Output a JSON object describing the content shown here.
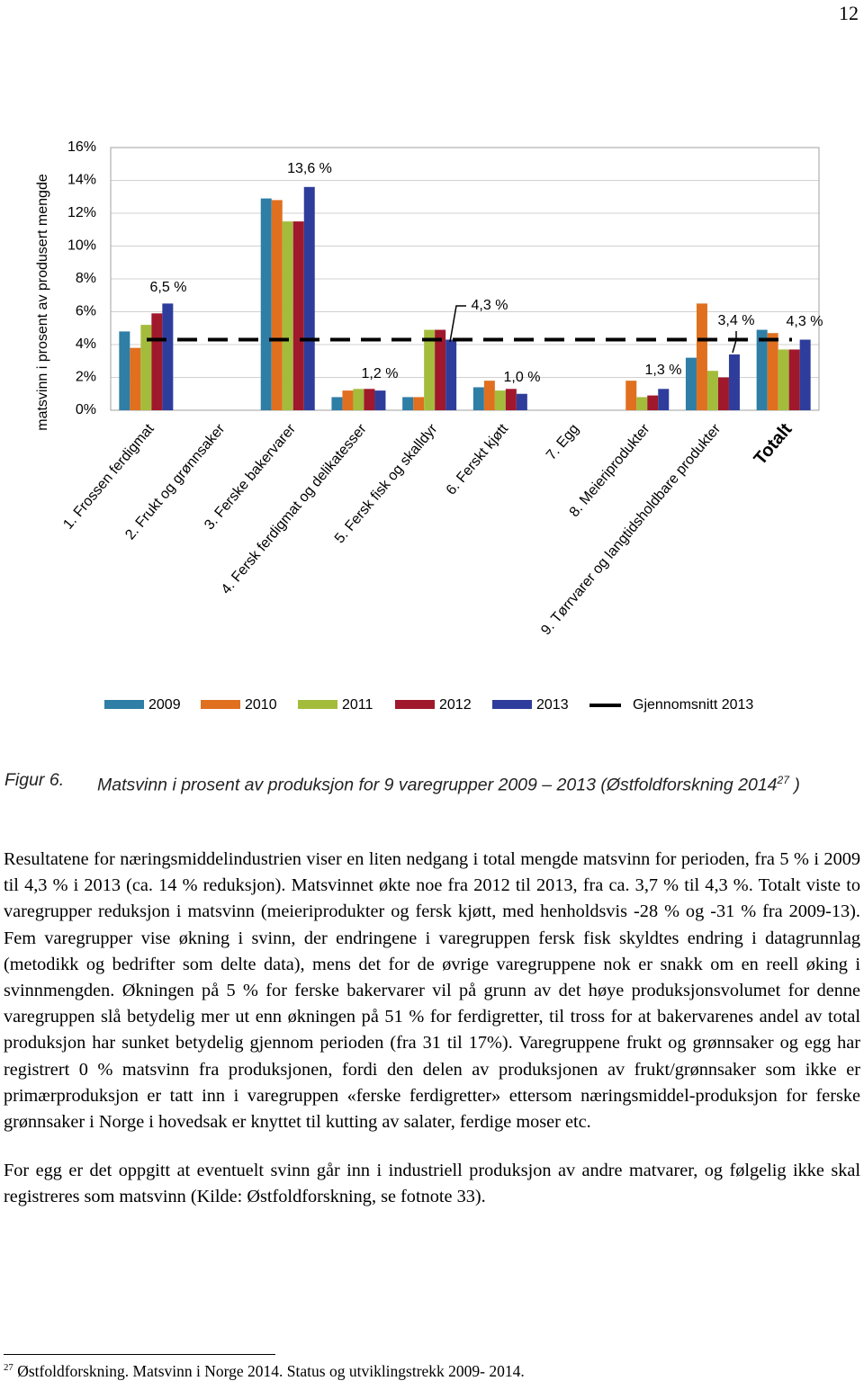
{
  "page_number": "12",
  "chart_data": {
    "type": "bar",
    "y_label": "matsvinn i prosent av produsert mengde",
    "categories": [
      "1. Frossen ferdigmat",
      "2. Frukt og grønnsaker",
      "3. Ferske bakervarer",
      "4. Fersk ferdigmat og delikatesser",
      "5. Fersk fisk og skalldyr",
      "6. Ferskt kjøtt",
      "7. Egg",
      "8. Meieriprodukter",
      "9. Tørrvarer og langtidsholdbare produkter",
      "Totalt"
    ],
    "series": [
      {
        "name": "2009",
        "color": "#2e7ea6",
        "values": [
          4.8,
          0,
          12.9,
          0.8,
          0.8,
          1.4,
          0,
          null,
          3.2,
          4.9
        ]
      },
      {
        "name": "2010",
        "color": "#e07020",
        "values": [
          3.8,
          0,
          12.8,
          1.2,
          0.8,
          1.8,
          0,
          1.8,
          6.5,
          4.7
        ]
      },
      {
        "name": "2011",
        "color": "#a4bc3c",
        "values": [
          5.2,
          0,
          11.5,
          1.3,
          4.9,
          1.2,
          0,
          0.8,
          2.4,
          3.7
        ]
      },
      {
        "name": "2012",
        "color": "#a0182c",
        "values": [
          5.9,
          0,
          11.5,
          1.3,
          4.9,
          1.3,
          0,
          0.9,
          2.0,
          3.7
        ]
      },
      {
        "name": "2013",
        "color": "#2e3d9c",
        "values": [
          6.5,
          0,
          13.6,
          1.2,
          4.3,
          1.0,
          0,
          1.3,
          3.4,
          4.3
        ]
      }
    ],
    "average": {
      "name": "Gjennomsnitt 2013",
      "value": 4.3,
      "color": "#000000"
    },
    "annotations": [
      "6,5 %",
      "13,6 %",
      "1,2 %",
      "4,3 %",
      "1,0 %",
      "1,3 %",
      "3,4 %",
      "4,3 %"
    ],
    "ylim": [
      0,
      16
    ],
    "yticks": [
      {
        "value": 0,
        "label": "0%"
      },
      {
        "value": 2,
        "label": "2%"
      },
      {
        "value": 4,
        "label": "4%"
      },
      {
        "value": 6,
        "label": "6%"
      },
      {
        "value": 8,
        "label": "8%"
      },
      {
        "value": 10,
        "label": "10%"
      },
      {
        "value": 12,
        "label": "12%"
      },
      {
        "value": 14,
        "label": "14%"
      },
      {
        "value": 16,
        "label": "16%"
      }
    ],
    "grid": true,
    "legend": "bottom"
  },
  "caption": {
    "label": "Figur 6.",
    "text": "Matsvinn i prosent av produksjon for 9 varegrupper 2009 – 2013 (Østfoldforskning 2014",
    "ref": "27",
    "close": ")"
  },
  "paragraphs": [
    "Resultatene for næringsmiddelindustrien viser en liten nedgang i total mengde matsvinn for perioden, fra 5 % i 2009 til 4,3 % i 2013 (ca. 14 % reduksjon). Matsvinnet økte noe fra 2012 til 2013, fra ca. 3,7 % til 4,3 %. Totalt viste to varegrupper reduksjon i matsvinn (meieriprodukter og fersk kjøtt, med henholdsvis -28 % og -31 % fra 2009-13). Fem varegrupper vise økning i svinn, der endringene i varegruppen fersk fisk skyldtes endring i datagrunnlag (metodikk og bedrifter som delte data), mens det for de øvrige varegruppene nok er snakk om en reell øking i svinnmengden. Økningen på 5 % for ferske bakervarer vil på grunn av det høye produksjonsvolumet for denne varegruppen slå betydelig mer ut enn økningen på 51 % for ferdigretter, til tross for at bakervarenes andel av total produksjon har sunket betydelig gjennom perioden (fra 31 til 17%). Varegruppene frukt og grønnsaker og egg har registrert 0 % matsvinn fra produksjonen, fordi den delen av produksjonen av frukt/grønnsaker som ikke er primærproduksjon er tatt inn i varegruppen «ferske ferdigretter» ettersom næringsmiddel-produksjon for ferske grønnsaker i Norge i hovedsak er knyttet til kutting av salater, ferdige moser etc.",
    "For egg er det oppgitt at eventuelt svinn går inn i industriell produksjon av andre matvarer, og følgelig ikke skal registreres som matsvinn (Kilde: Østfoldforskning, se fotnote 33)."
  ],
  "footnote": {
    "number": "27",
    "text": "Østfoldforskning. Matsvinn i Norge 2014. Status og utviklingstrekk 2009- 2014."
  }
}
